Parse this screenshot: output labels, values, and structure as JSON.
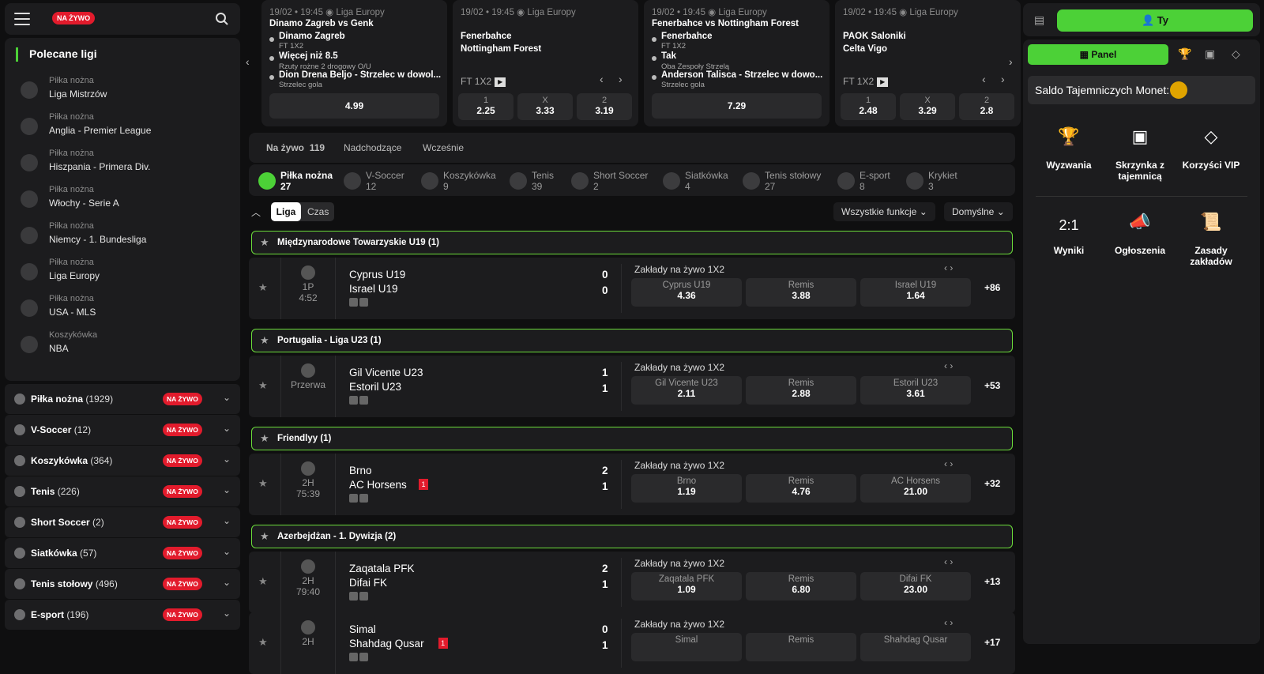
{
  "header": {
    "live_badge": "NA ŻYWO"
  },
  "featured": {
    "title": "Polecane ligi",
    "items": [
      {
        "cat": "Piłka nożna",
        "name": "Liga Mistrzów"
      },
      {
        "cat": "Piłka nożna",
        "name": "Anglia - Premier League"
      },
      {
        "cat": "Piłka nożna",
        "name": "Hiszpania - Primera Div."
      },
      {
        "cat": "Piłka nożna",
        "name": "Włochy - Serie A"
      },
      {
        "cat": "Piłka nożna",
        "name": "Niemcy - 1. Bundesliga"
      },
      {
        "cat": "Piłka nożna",
        "name": "Liga Europy"
      },
      {
        "cat": "Piłka nożna",
        "name": "USA - MLS"
      },
      {
        "cat": "Koszykówka",
        "name": "NBA"
      }
    ]
  },
  "sports": [
    {
      "name": "Piłka nożna",
      "count": "(1929)",
      "live": "NA ŻYWO"
    },
    {
      "name": "V-Soccer",
      "count": "(12)",
      "live": "NA ŻYWO"
    },
    {
      "name": "Koszykówka",
      "count": "(364)",
      "live": "NA ŻYWO"
    },
    {
      "name": "Tenis",
      "count": "(226)",
      "live": "NA ŻYWO"
    },
    {
      "name": "Short Soccer",
      "count": "(2)",
      "live": "NA ŻYWO"
    },
    {
      "name": "Siatkówka",
      "count": "(57)",
      "live": "NA ŻYWO"
    },
    {
      "name": "Tenis stołowy",
      "count": "(496)",
      "live": "NA ŻYWO"
    },
    {
      "name": "E-sport",
      "count": "(196)",
      "live": "NA ŻYWO"
    }
  ],
  "cards": [
    {
      "date": "19/02 • 19:45",
      "league": "Liga Europy",
      "title": "Dinamo Zagreb vs Genk",
      "lines": [
        "Dinamo Zagreb",
        "FT 1X2",
        "Więcej niż 8.5",
        "Rzuty rożne 2 drogowy O/U",
        "Dion Drena Beljo - Strzelec w dowol...",
        "Strzelec gola"
      ],
      "odd": "4.99"
    },
    {
      "date": "19/02 • 19:45",
      "league": "Liga Europy",
      "home": "Fenerbahce",
      "away": "Nottingham Forest",
      "market": "FT 1X2",
      "odds": [
        {
          "l": "1",
          "v": "2.25"
        },
        {
          "l": "X",
          "v": "3.33"
        },
        {
          "l": "2",
          "v": "3.19"
        }
      ]
    },
    {
      "date": "19/02 • 19:45",
      "league": "Liga Europy",
      "title": "Fenerbahce vs Nottingham Forest",
      "lines": [
        "Fenerbahce",
        "FT 1X2",
        "Tak",
        "Oba Zespoły Strzelą",
        "Anderson Talisca - Strzelec w dowo...",
        "Strzelec gola"
      ],
      "odd": "7.29"
    },
    {
      "date": "19/02 • 19:45",
      "league": "Liga Europy",
      "home": "PAOK Saloniki",
      "away": "Celta Vigo",
      "market": "FT 1X2",
      "odds": [
        {
          "l": "1",
          "v": "2.48"
        },
        {
          "l": "X",
          "v": "3.29"
        },
        {
          "l": "2",
          "v": "2.8"
        }
      ]
    }
  ],
  "tabs": {
    "live": "Na żywo",
    "live_count": "119",
    "upcoming": "Nadchodzące",
    "early": "Wcześnie"
  },
  "sportbar": [
    {
      "name": "Piłka nożna",
      "count": "27"
    },
    {
      "name": "V-Soccer",
      "count": "12"
    },
    {
      "name": "Koszykówka",
      "count": "9"
    },
    {
      "name": "Tenis",
      "count": "39"
    },
    {
      "name": "Short Soccer",
      "count": "2"
    },
    {
      "name": "Siatkówka",
      "count": "4"
    },
    {
      "name": "Tenis stołowy",
      "count": "27"
    },
    {
      "name": "E-sport",
      "count": "8"
    },
    {
      "name": "Krykiet",
      "count": "3"
    }
  ],
  "filters": {
    "league": "Liga",
    "time": "Czas",
    "all": "Wszystkie funkcje",
    "default": "Domyślne"
  },
  "market_label": "Zakłady na żywo 1X2",
  "draw_label": "Remis",
  "groups": [
    {
      "title": "Międzynarodowe Towarzyskie U19 (1)",
      "matches": [
        {
          "p1": "1P",
          "p2": "4:52",
          "home": "Cyprus U19",
          "away": "Israel U19",
          "hs": "0",
          "as": "0",
          "o1": "4.36",
          "ox": "3.88",
          "o2": "1.64",
          "more": "+86"
        }
      ]
    },
    {
      "title": "Portugalia - Liga U23 (1)",
      "matches": [
        {
          "p1": "",
          "p2": "Przerwa",
          "home": "Gil Vicente U23",
          "away": "Estoril U23",
          "hs": "1",
          "as": "1",
          "o1": "2.11",
          "ox": "2.88",
          "o2": "3.61",
          "more": "+53"
        }
      ]
    },
    {
      "title": "Friendlyy (1)",
      "matches": [
        {
          "p1": "2H",
          "p2": "75:39",
          "home": "Brno",
          "away": "AC Horsens",
          "hs": "2",
          "as": "1",
          "o1": "1.19",
          "ox": "4.76",
          "o2": "21.00",
          "more": "+32",
          "red": "1"
        }
      ]
    },
    {
      "title": "Azerbejdżan - 1. Dywizja (2)",
      "matches": [
        {
          "p1": "2H",
          "p2": "79:40",
          "home": "Zaqatala PFK",
          "away": "Difai FK",
          "hs": "2",
          "as": "1",
          "o1": "1.09",
          "ox": "6.80",
          "o2": "23.00",
          "more": "+13"
        },
        {
          "p1": "2H",
          "p2": "",
          "home": "Simal",
          "away": "Shahdag Qusar",
          "hs": "0",
          "as": "1",
          "o1": "",
          "ox": "",
          "o2": "",
          "more": "+17",
          "red": "1"
        }
      ]
    }
  ],
  "right": {
    "user": "Ty",
    "panel": "Panel",
    "saldo": "Saldo Tajemniczych Monet: -",
    "tiles": [
      "Wyzwania",
      "Skrzynka z tajemnicą",
      "Korzyści VIP",
      "Wyniki",
      "Ogłoszenia",
      "Zasady zakładów"
    ],
    "results_glyph": "2:1"
  },
  "colors": {
    "accent": "#4cd137",
    "live": "#e21b2c",
    "panel": "#1c1c1e",
    "bg": "#0f0f10"
  }
}
